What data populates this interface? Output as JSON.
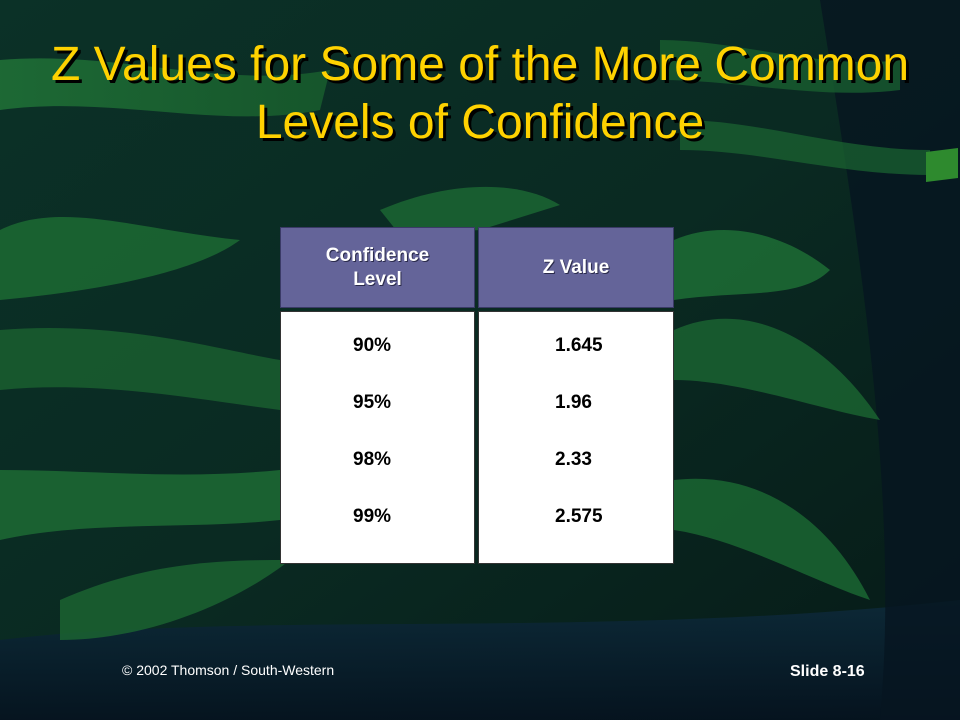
{
  "slide": {
    "title": "Z Values for Some of the More Common Levels of Confidence",
    "footer_copyright": "© 2002 Thomson / South-Western",
    "slide_number": "Slide 8-16"
  },
  "table": {
    "headers": [
      "Confidence Level",
      "Z Value"
    ],
    "rows": [
      [
        "90%",
        "1.645"
      ],
      [
        "95%",
        "1.96"
      ],
      [
        "98%",
        "2.33"
      ],
      [
        "99%",
        "2.575"
      ]
    ]
  },
  "colors": {
    "background": "#0a2a22",
    "ribbon_green": "#1e6b34",
    "title": "#ffd200",
    "header_fill": "#646499",
    "cell_fill": "#ffffff"
  }
}
